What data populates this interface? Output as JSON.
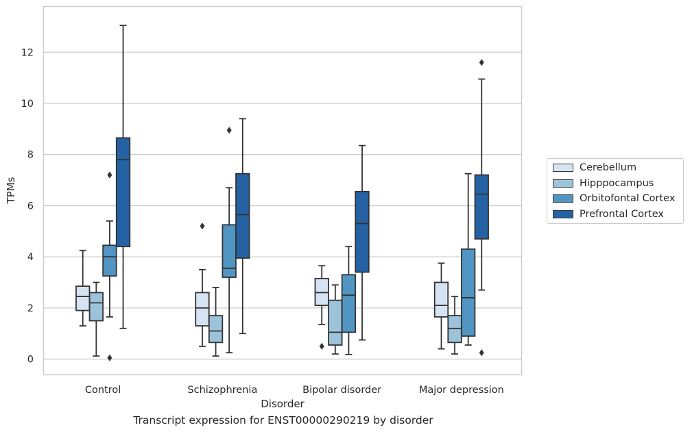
{
  "caption": "Transcript expression for ENST00000290219 by disorder",
  "chart_data": {
    "type": "box",
    "xlabel": "Disorder",
    "ylabel": "TPMs",
    "ylim": [
      -0.6,
      13.8
    ],
    "yticks": [
      0,
      2,
      4,
      6,
      8,
      10,
      12
    ],
    "grid": "horizontal",
    "legend_position": "right",
    "categories": [
      "Control",
      "Schizophrenia",
      "Bipolar disorder",
      "Major depression"
    ],
    "series": [
      {
        "name": "Cerebellum",
        "color": "#d6e3f2",
        "boxes": [
          {
            "whisker_low": 1.3,
            "q1": 1.9,
            "median": 2.45,
            "q3": 2.85,
            "whisker_high": 4.25,
            "outliers": []
          },
          {
            "whisker_low": 0.5,
            "q1": 1.3,
            "median": 2.0,
            "q3": 2.6,
            "whisker_high": 3.5,
            "outliers": [
              5.2
            ]
          },
          {
            "whisker_low": 1.35,
            "q1": 2.1,
            "median": 2.6,
            "q3": 3.15,
            "whisker_high": 3.65,
            "outliers": [
              0.5
            ]
          },
          {
            "whisker_low": 0.4,
            "q1": 1.65,
            "median": 2.1,
            "q3": 3.0,
            "whisker_high": 3.75,
            "outliers": []
          }
        ]
      },
      {
        "name": "Hipppocampus",
        "color": "#9dc3db",
        "boxes": [
          {
            "whisker_low": 0.12,
            "q1": 1.5,
            "median": 2.2,
            "q3": 2.6,
            "whisker_high": 3.0,
            "outliers": []
          },
          {
            "whisker_low": 0.12,
            "q1": 0.65,
            "median": 1.1,
            "q3": 1.7,
            "whisker_high": 2.8,
            "outliers": []
          },
          {
            "whisker_low": 0.2,
            "q1": 0.55,
            "median": 1.05,
            "q3": 2.3,
            "whisker_high": 2.9,
            "outliers": []
          },
          {
            "whisker_low": 0.2,
            "q1": 0.65,
            "median": 1.2,
            "q3": 1.7,
            "whisker_high": 2.45,
            "outliers": []
          }
        ]
      },
      {
        "name": "Orbitofontal Cortex",
        "color": "#5195c2",
        "boxes": [
          {
            "whisker_low": 1.65,
            "q1": 3.25,
            "median": 4.0,
            "q3": 4.45,
            "whisker_high": 5.4,
            "outliers": [
              7.2,
              0.05
            ]
          },
          {
            "whisker_low": 0.25,
            "q1": 3.2,
            "median": 3.55,
            "q3": 5.25,
            "whisker_high": 6.7,
            "outliers": [
              8.95
            ]
          },
          {
            "whisker_low": 0.18,
            "q1": 1.05,
            "median": 2.5,
            "q3": 3.3,
            "whisker_high": 4.4,
            "outliers": []
          },
          {
            "whisker_low": 0.55,
            "q1": 0.9,
            "median": 2.4,
            "q3": 4.3,
            "whisker_high": 7.25,
            "outliers": []
          }
        ]
      },
      {
        "name": "Prefrontal Cortex",
        "color": "#2462a4",
        "boxes": [
          {
            "whisker_low": 1.2,
            "q1": 4.4,
            "median": 7.8,
            "q3": 8.65,
            "whisker_high": 13.05,
            "outliers": []
          },
          {
            "whisker_low": 1.0,
            "q1": 3.95,
            "median": 5.65,
            "q3": 7.25,
            "whisker_high": 9.4,
            "outliers": []
          },
          {
            "whisker_low": 0.75,
            "q1": 3.4,
            "median": 5.3,
            "q3": 6.55,
            "whisker_high": 8.35,
            "outliers": []
          },
          {
            "whisker_low": 2.7,
            "q1": 4.7,
            "median": 6.45,
            "q3": 7.2,
            "whisker_high": 10.95,
            "outliers": [
              11.6,
              0.25
            ]
          }
        ]
      }
    ]
  }
}
